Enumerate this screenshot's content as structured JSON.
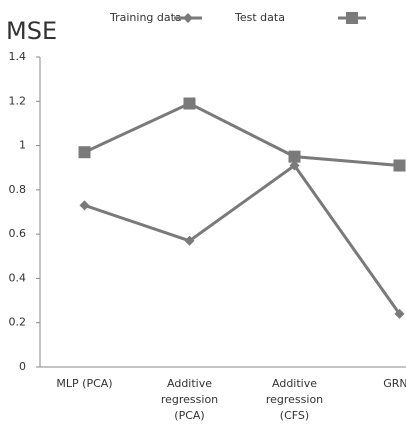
{
  "chart_data": {
    "type": "line",
    "title": "MSE",
    "categories": [
      "MLP (PCA)",
      "Additive regression (PCA)",
      "Additive regression (CFS)",
      "GRNN"
    ],
    "series": [
      {
        "name": "Training data",
        "color": "#7a7a7a",
        "marker": "diamond",
        "values": [
          0.73,
          0.57,
          0.91,
          0.24
        ]
      },
      {
        "name": "Test  data",
        "color": "#7a7a7a",
        "marker": "square",
        "values": [
          0.97,
          1.19,
          0.95,
          0.91
        ]
      }
    ],
    "ylim": [
      0,
      1.4
    ],
    "yticks": [
      0,
      0.2,
      0.4,
      0.6,
      0.8,
      1,
      1.2,
      1.4
    ]
  }
}
